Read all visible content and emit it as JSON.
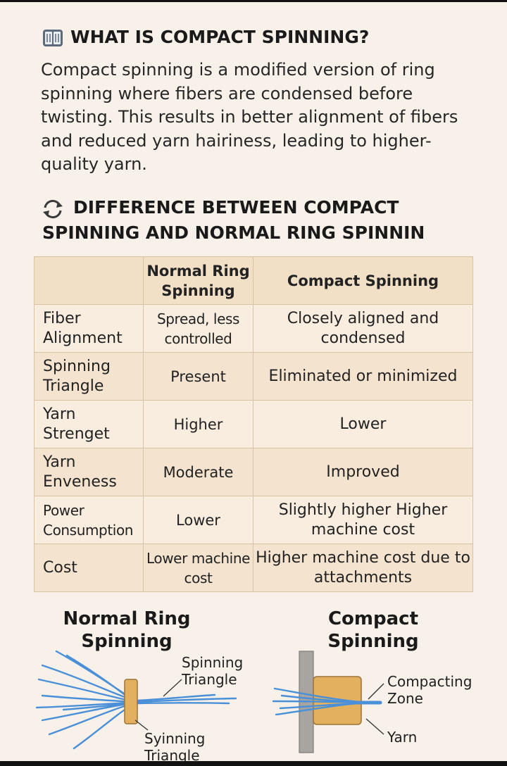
{
  "section1": {
    "title": "WHAT IS COMPACT SPINNING?",
    "icon": "book-icon",
    "body": "Compact spinning is a modified version of ring spinning where fibers are condensed before twisting. This results in better alignment of fibers and reduced yarn hairiness, leading to higher-quality yarn."
  },
  "section2": {
    "icon": "sync-icon",
    "title_line1": "DIFFERENCE BETWEEN COMPACT",
    "title_line2": "SPINNING AND NORMAL RING SPINNIN"
  },
  "table": {
    "headers": [
      "",
      "Normal Ring Spinning",
      "Compact Spinning"
    ],
    "rows": [
      [
        "Fiber Alignment",
        "Spread, less controlled",
        "Closely aligned and condensed"
      ],
      [
        "Spinning Triangle",
        "Present",
        "Eliminated or minimized"
      ],
      [
        "Yarn Strenget",
        "Higher",
        "Lower"
      ],
      [
        "Yarn Enveness",
        "Moderate",
        "Improved"
      ],
      [
        "Power Consumption",
        "Lower",
        "Slightly higher Higher machine cost"
      ],
      [
        "Cost",
        "Lower machine cost",
        "Higher machine cost due to attachments"
      ]
    ]
  },
  "diagram": {
    "left_title": "Normal Ring Spinning",
    "right_title": "Compact Spinning",
    "left_label_top": "Spinning Triangle",
    "left_label_bottom": "Syinning Triangle",
    "right_label_top": "Compacting Zone",
    "right_label_bottom": "Yarn",
    "colors": {
      "fiber": "#4a90d9",
      "roller": "#e2b05e",
      "roller_border": "#9c7335",
      "bar": "#a8a4a0"
    }
  }
}
